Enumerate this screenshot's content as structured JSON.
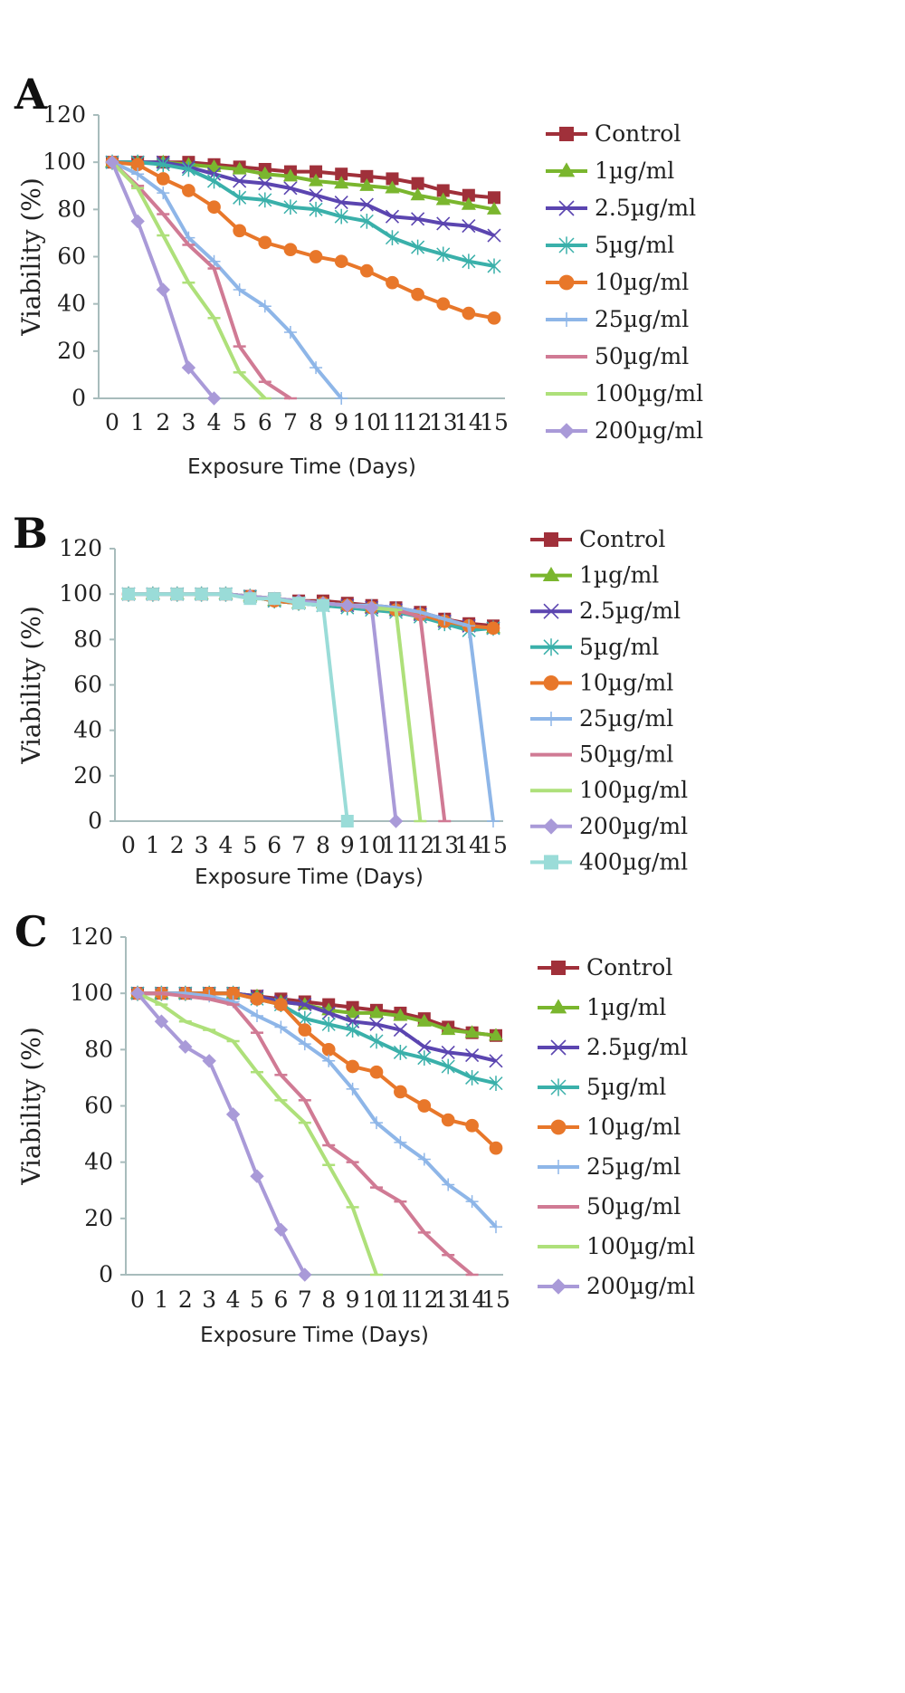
{
  "chart_data": [
    {
      "panel": "A",
      "type": "line",
      "xlabel": "Exposure Time (Days)",
      "ylabel": "Viability (%)",
      "ylim": [
        0,
        120
      ],
      "yticks": [
        0,
        20,
        40,
        60,
        80,
        100,
        120
      ],
      "x": [
        0,
        1,
        2,
        3,
        4,
        5,
        6,
        7,
        8,
        9,
        10,
        11,
        12,
        13,
        14,
        15
      ],
      "legend": "right",
      "grid": false,
      "series": [
        {
          "name": "Control",
          "color": "#a0303a",
          "marker": "square",
          "values": [
            100,
            100,
            100,
            100,
            99,
            98,
            97,
            96,
            96,
            95,
            94,
            93,
            91,
            88,
            86,
            85
          ]
        },
        {
          "name": "1µg/ml",
          "color": "#7ab62e",
          "marker": "triangle",
          "values": [
            100,
            100,
            100,
            99,
            98,
            97,
            95,
            94,
            92,
            91,
            90,
            89,
            86,
            84,
            82,
            80
          ]
        },
        {
          "name": "2.5µg/ml",
          "color": "#5b45b0",
          "marker": "x",
          "values": [
            100,
            100,
            100,
            98,
            95,
            92,
            91,
            89,
            86,
            83,
            82,
            77,
            76,
            74,
            73,
            69
          ]
        },
        {
          "name": "5µg/ml",
          "color": "#3ab0aa",
          "marker": "star",
          "values": [
            100,
            100,
            99,
            97,
            92,
            85,
            84,
            81,
            80,
            77,
            75,
            68,
            64,
            61,
            58,
            56
          ]
        },
        {
          "name": "10µg/ml",
          "color": "#e8772a",
          "marker": "circle",
          "values": [
            100,
            99,
            93,
            88,
            81,
            71,
            66,
            63,
            60,
            58,
            54,
            49,
            44,
            40,
            36,
            34
          ]
        },
        {
          "name": "25µg/ml",
          "color": "#8eb6e8",
          "marker": "plus",
          "values": [
            100,
            95,
            87,
            68,
            58,
            46,
            39,
            28,
            13,
            0,
            null,
            null,
            null,
            null,
            null,
            null
          ]
        },
        {
          "name": "50µg/ml",
          "color": "#d07a94",
          "marker": "dash",
          "values": [
            100,
            90,
            78,
            65,
            55,
            22,
            7,
            0,
            null,
            null,
            null,
            null,
            null,
            null,
            null,
            null
          ]
        },
        {
          "name": "100µg/ml",
          "color": "#aee07a",
          "marker": "dash",
          "values": [
            100,
            89,
            69,
            49,
            34,
            11,
            0,
            null,
            null,
            null,
            null,
            null,
            null,
            null,
            null,
            null
          ]
        },
        {
          "name": "200µg/ml",
          "color": "#a99ad8",
          "marker": "diamond",
          "values": [
            100,
            75,
            46,
            13,
            0,
            null,
            null,
            null,
            null,
            null,
            null,
            null,
            null,
            null,
            null,
            null
          ]
        }
      ]
    },
    {
      "panel": "B",
      "type": "line",
      "xlabel": "Exposure Time (Days)",
      "ylabel": "Viability (%)",
      "ylim": [
        0,
        120
      ],
      "yticks": [
        0,
        20,
        40,
        60,
        80,
        100,
        120
      ],
      "x": [
        0,
        1,
        2,
        3,
        4,
        5,
        6,
        7,
        8,
        9,
        10,
        11,
        12,
        13,
        14,
        15
      ],
      "legend": "right",
      "grid": false,
      "series": [
        {
          "name": "Control",
          "color": "#a0303a",
          "marker": "square",
          "values": [
            100,
            100,
            100,
            100,
            100,
            99,
            98,
            97,
            97,
            96,
            95,
            94,
            92,
            89,
            87,
            86
          ]
        },
        {
          "name": "1µg/ml",
          "color": "#7ab62e",
          "marker": "triangle",
          "values": [
            100,
            100,
            100,
            100,
            100,
            99,
            97,
            96,
            96,
            95,
            94,
            93,
            91,
            88,
            86,
            85
          ]
        },
        {
          "name": "2.5µg/ml",
          "color": "#5b45b0",
          "marker": "x",
          "values": [
            100,
            100,
            100,
            100,
            100,
            99,
            97,
            96,
            95,
            95,
            94,
            93,
            91,
            88,
            86,
            85
          ]
        },
        {
          "name": "5µg/ml",
          "color": "#3ab0aa",
          "marker": "star",
          "values": [
            100,
            100,
            100,
            100,
            100,
            99,
            97,
            96,
            95,
            94,
            93,
            92,
            90,
            87,
            84,
            85
          ]
        },
        {
          "name": "10µg/ml",
          "color": "#e8772a",
          "marker": "circle",
          "values": [
            100,
            100,
            100,
            100,
            100,
            99,
            97,
            96,
            96,
            95,
            94,
            93,
            91,
            88,
            86,
            85
          ]
        },
        {
          "name": "25µg/ml",
          "color": "#8eb6e8",
          "marker": "plus",
          "values": [
            100,
            100,
            100,
            100,
            100,
            99,
            98,
            97,
            96,
            95,
            95,
            94,
            92,
            89,
            86,
            0
          ]
        },
        {
          "name": "50µg/ml",
          "color": "#d07a94",
          "marker": "dash",
          "values": [
            100,
            100,
            100,
            100,
            100,
            99,
            98,
            97,
            96,
            95,
            94,
            93,
            90,
            0,
            null,
            null
          ]
        },
        {
          "name": "100µg/ml",
          "color": "#aee07a",
          "marker": "dash",
          "values": [
            100,
            100,
            100,
            100,
            100,
            99,
            98,
            97,
            96,
            95,
            94,
            93,
            0,
            null,
            null,
            null
          ]
        },
        {
          "name": "200µg/ml",
          "color": "#a99ad8",
          "marker": "diamond",
          "values": [
            100,
            100,
            100,
            100,
            100,
            99,
            98,
            97,
            96,
            95,
            94,
            0,
            null,
            null,
            null,
            null
          ]
        },
        {
          "name": "400µg/ml",
          "color": "#9adcd8",
          "marker": "square",
          "values": [
            100,
            100,
            100,
            100,
            100,
            98,
            98,
            96,
            95,
            0,
            null,
            null,
            null,
            null,
            null,
            null
          ]
        }
      ]
    },
    {
      "panel": "C",
      "type": "line",
      "xlabel": "Exposure Time (Days)",
      "ylabel": "Viability (%)",
      "ylim": [
        0,
        120
      ],
      "yticks": [
        0,
        20,
        40,
        60,
        80,
        100,
        120
      ],
      "x": [
        0,
        1,
        2,
        3,
        4,
        5,
        6,
        7,
        8,
        9,
        10,
        11,
        12,
        13,
        14,
        15
      ],
      "legend": "right",
      "grid": false,
      "series": [
        {
          "name": "Control",
          "color": "#a0303a",
          "marker": "square",
          "values": [
            100,
            100,
            100,
            100,
            100,
            99,
            98,
            97,
            96,
            95,
            94,
            93,
            91,
            88,
            86,
            85
          ]
        },
        {
          "name": "1µg/ml",
          "color": "#7ab62e",
          "marker": "triangle",
          "values": [
            100,
            100,
            100,
            100,
            100,
            99,
            97,
            96,
            94,
            93,
            93,
            92,
            90,
            87,
            86,
            85
          ]
        },
        {
          "name": "2.5µg/ml",
          "color": "#5b45b0",
          "marker": "x",
          "values": [
            100,
            100,
            100,
            100,
            100,
            99,
            97,
            96,
            93,
            90,
            89,
            87,
            81,
            79,
            78,
            76
          ]
        },
        {
          "name": "5µg/ml",
          "color": "#3ab0aa",
          "marker": "star",
          "values": [
            100,
            100,
            100,
            100,
            100,
            98,
            96,
            91,
            89,
            87,
            83,
            79,
            77,
            74,
            70,
            68
          ]
        },
        {
          "name": "10µg/ml",
          "color": "#e8772a",
          "marker": "circle",
          "values": [
            100,
            100,
            100,
            100,
            100,
            98,
            96,
            87,
            80,
            74,
            72,
            65,
            60,
            55,
            53,
            45
          ]
        },
        {
          "name": "25µg/ml",
          "color": "#8eb6e8",
          "marker": "plus",
          "values": [
            100,
            100,
            100,
            99,
            97,
            92,
            88,
            82,
            76,
            66,
            54,
            47,
            41,
            32,
            26,
            17
          ]
        },
        {
          "name": "50µg/ml",
          "color": "#d07a94",
          "marker": "dash",
          "values": [
            100,
            100,
            99,
            98,
            96,
            86,
            71,
            62,
            46,
            40,
            31,
            26,
            15,
            7,
            0,
            null
          ]
        },
        {
          "name": "100µg/ml",
          "color": "#aee07a",
          "marker": "dash",
          "values": [
            100,
            96,
            90,
            87,
            83,
            72,
            62,
            54,
            39,
            24,
            0,
            null,
            null,
            null,
            null,
            null
          ]
        },
        {
          "name": "200µg/ml",
          "color": "#a99ad8",
          "marker": "diamond",
          "values": [
            100,
            90,
            81,
            76,
            57,
            35,
            16,
            0,
            null,
            null,
            null,
            null,
            null,
            null,
            null,
            null
          ]
        }
      ]
    }
  ]
}
